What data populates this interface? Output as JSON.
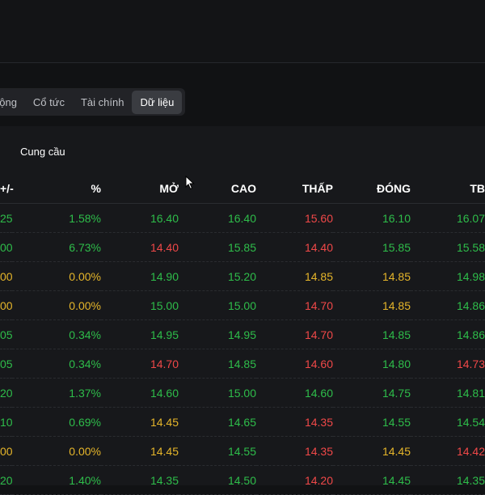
{
  "tabs": [
    {
      "label": "động",
      "active": false
    },
    {
      "label": "Cổ tức",
      "active": false
    },
    {
      "label": "Tài chính",
      "active": false
    },
    {
      "label": "Dữ liệu",
      "active": true
    }
  ],
  "subtab": {
    "label": "Cung cầu"
  },
  "table": {
    "headers": [
      "+/-",
      "%",
      "MỞ",
      "CAO",
      "THẤP",
      "ĐÓNG",
      "TB"
    ],
    "rows": [
      [
        {
          "v": "25",
          "c": "green"
        },
        {
          "v": "1.58%",
          "c": "green"
        },
        {
          "v": "16.40",
          "c": "green"
        },
        {
          "v": "16.40",
          "c": "green"
        },
        {
          "v": "15.60",
          "c": "red"
        },
        {
          "v": "16.10",
          "c": "green"
        },
        {
          "v": "16.07",
          "c": "green"
        }
      ],
      [
        {
          "v": "00",
          "c": "green"
        },
        {
          "v": "6.73%",
          "c": "green"
        },
        {
          "v": "14.40",
          "c": "red"
        },
        {
          "v": "15.85",
          "c": "green"
        },
        {
          "v": "14.40",
          "c": "red"
        },
        {
          "v": "15.85",
          "c": "green"
        },
        {
          "v": "15.58",
          "c": "green"
        }
      ],
      [
        {
          "v": "00",
          "c": "yellow"
        },
        {
          "v": "0.00%",
          "c": "yellow"
        },
        {
          "v": "14.90",
          "c": "green"
        },
        {
          "v": "15.20",
          "c": "green"
        },
        {
          "v": "14.85",
          "c": "yellow"
        },
        {
          "v": "14.85",
          "c": "yellow"
        },
        {
          "v": "14.98",
          "c": "green"
        }
      ],
      [
        {
          "v": "00",
          "c": "yellow"
        },
        {
          "v": "0.00%",
          "c": "yellow"
        },
        {
          "v": "15.00",
          "c": "green"
        },
        {
          "v": "15.00",
          "c": "green"
        },
        {
          "v": "14.70",
          "c": "red"
        },
        {
          "v": "14.85",
          "c": "yellow"
        },
        {
          "v": "14.86",
          "c": "green"
        }
      ],
      [
        {
          "v": "05",
          "c": "green"
        },
        {
          "v": "0.34%",
          "c": "green"
        },
        {
          "v": "14.95",
          "c": "green"
        },
        {
          "v": "14.95",
          "c": "green"
        },
        {
          "v": "14.70",
          "c": "red"
        },
        {
          "v": "14.85",
          "c": "green"
        },
        {
          "v": "14.86",
          "c": "green"
        }
      ],
      [
        {
          "v": "05",
          "c": "green"
        },
        {
          "v": "0.34%",
          "c": "green"
        },
        {
          "v": "14.70",
          "c": "red"
        },
        {
          "v": "14.85",
          "c": "green"
        },
        {
          "v": "14.60",
          "c": "red"
        },
        {
          "v": "14.80",
          "c": "green"
        },
        {
          "v": "14.73",
          "c": "red"
        }
      ],
      [
        {
          "v": "20",
          "c": "green"
        },
        {
          "v": "1.37%",
          "c": "green"
        },
        {
          "v": "14.60",
          "c": "green"
        },
        {
          "v": "15.00",
          "c": "green"
        },
        {
          "v": "14.60",
          "c": "green"
        },
        {
          "v": "14.75",
          "c": "green"
        },
        {
          "v": "14.81",
          "c": "green"
        }
      ],
      [
        {
          "v": "10",
          "c": "green"
        },
        {
          "v": "0.69%",
          "c": "green"
        },
        {
          "v": "14.45",
          "c": "yellow"
        },
        {
          "v": "14.65",
          "c": "green"
        },
        {
          "v": "14.35",
          "c": "red"
        },
        {
          "v": "14.55",
          "c": "green"
        },
        {
          "v": "14.54",
          "c": "green"
        }
      ],
      [
        {
          "v": "00",
          "c": "yellow"
        },
        {
          "v": "0.00%",
          "c": "yellow"
        },
        {
          "v": "14.45",
          "c": "yellow"
        },
        {
          "v": "14.55",
          "c": "green"
        },
        {
          "v": "14.35",
          "c": "red"
        },
        {
          "v": "14.45",
          "c": "yellow"
        },
        {
          "v": "14.42",
          "c": "red"
        }
      ],
      [
        {
          "v": "20",
          "c": "green"
        },
        {
          "v": "1.40%",
          "c": "green"
        },
        {
          "v": "14.35",
          "c": "green"
        },
        {
          "v": "14.50",
          "c": "green"
        },
        {
          "v": "14.20",
          "c": "red"
        },
        {
          "v": "14.45",
          "c": "green"
        },
        {
          "v": "14.35",
          "c": "green"
        }
      ]
    ]
  },
  "colors": {
    "green": "#2ebd4a",
    "red": "#f04848",
    "yellow": "#e5b52a",
    "background": "#111214"
  },
  "icons": {
    "cursor": "mouse-pointer-icon"
  }
}
